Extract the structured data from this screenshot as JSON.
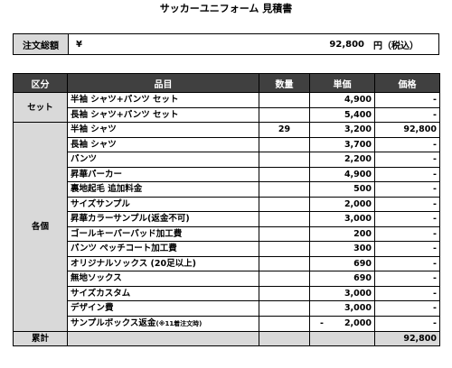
{
  "title": "サッカーユニフォーム 見積書",
  "order_total": {
    "label": "注文総額",
    "yen": "¥",
    "amount": "92,800",
    "unit": "円（税込）"
  },
  "table": {
    "headers": [
      "区分",
      "品目",
      "数量",
      "単価",
      "価格"
    ],
    "groups": [
      {
        "category": "セット",
        "rows": [
          {
            "name": "半袖 シャツ+パンツ セット",
            "qty": "",
            "price": "4,900",
            "amount": "-"
          },
          {
            "name": "長袖 シャツ+パンツ セット",
            "qty": "",
            "price": "5,400",
            "amount": "-"
          }
        ]
      },
      {
        "category": "各個",
        "rows": [
          {
            "name": "半袖 シャツ",
            "qty": "29",
            "price": "3,200",
            "amount": "92,800"
          },
          {
            "name": "長袖 シャツ",
            "qty": "",
            "price": "3,700",
            "amount": "-"
          },
          {
            "name": "パンツ",
            "qty": "",
            "price": "2,200",
            "amount": "-"
          },
          {
            "name": "昇華パーカー",
            "qty": "",
            "price": "4,900",
            "amount": "-"
          },
          {
            "name": "裏地起毛 追加料金",
            "qty": "",
            "price": "500",
            "amount": "-"
          },
          {
            "name": "サイズサンプル",
            "qty": "",
            "price": "2,000",
            "amount": "-"
          },
          {
            "name": "昇華カラーサンプル(返金不可)",
            "qty": "",
            "price": "3,000",
            "amount": "-"
          },
          {
            "name": "ゴールキーパーパッド加工費",
            "qty": "",
            "price": "200",
            "amount": "-"
          },
          {
            "name": "パンツ ペッチコート加工費",
            "qty": "",
            "price": "300",
            "amount": "-"
          },
          {
            "name": "オリジナルソックス (20足以上)",
            "qty": "",
            "price": "690",
            "amount": "-"
          },
          {
            "name": "無地ソックス",
            "qty": "",
            "price": "690",
            "amount": "-"
          },
          {
            "name": "サイズカスタム",
            "qty": "",
            "price": "3,000",
            "amount": "-"
          },
          {
            "name": "デザイン費",
            "qty": "",
            "price": "3,000",
            "amount": "-"
          },
          {
            "name": "サンプルボックス返金",
            "note": "(※11着注文時)",
            "qty": "",
            "price_prefix": "-",
            "price": "2,000",
            "amount": "-"
          }
        ]
      }
    ],
    "subtotal": {
      "label": "累計",
      "amount": "92,800"
    }
  }
}
